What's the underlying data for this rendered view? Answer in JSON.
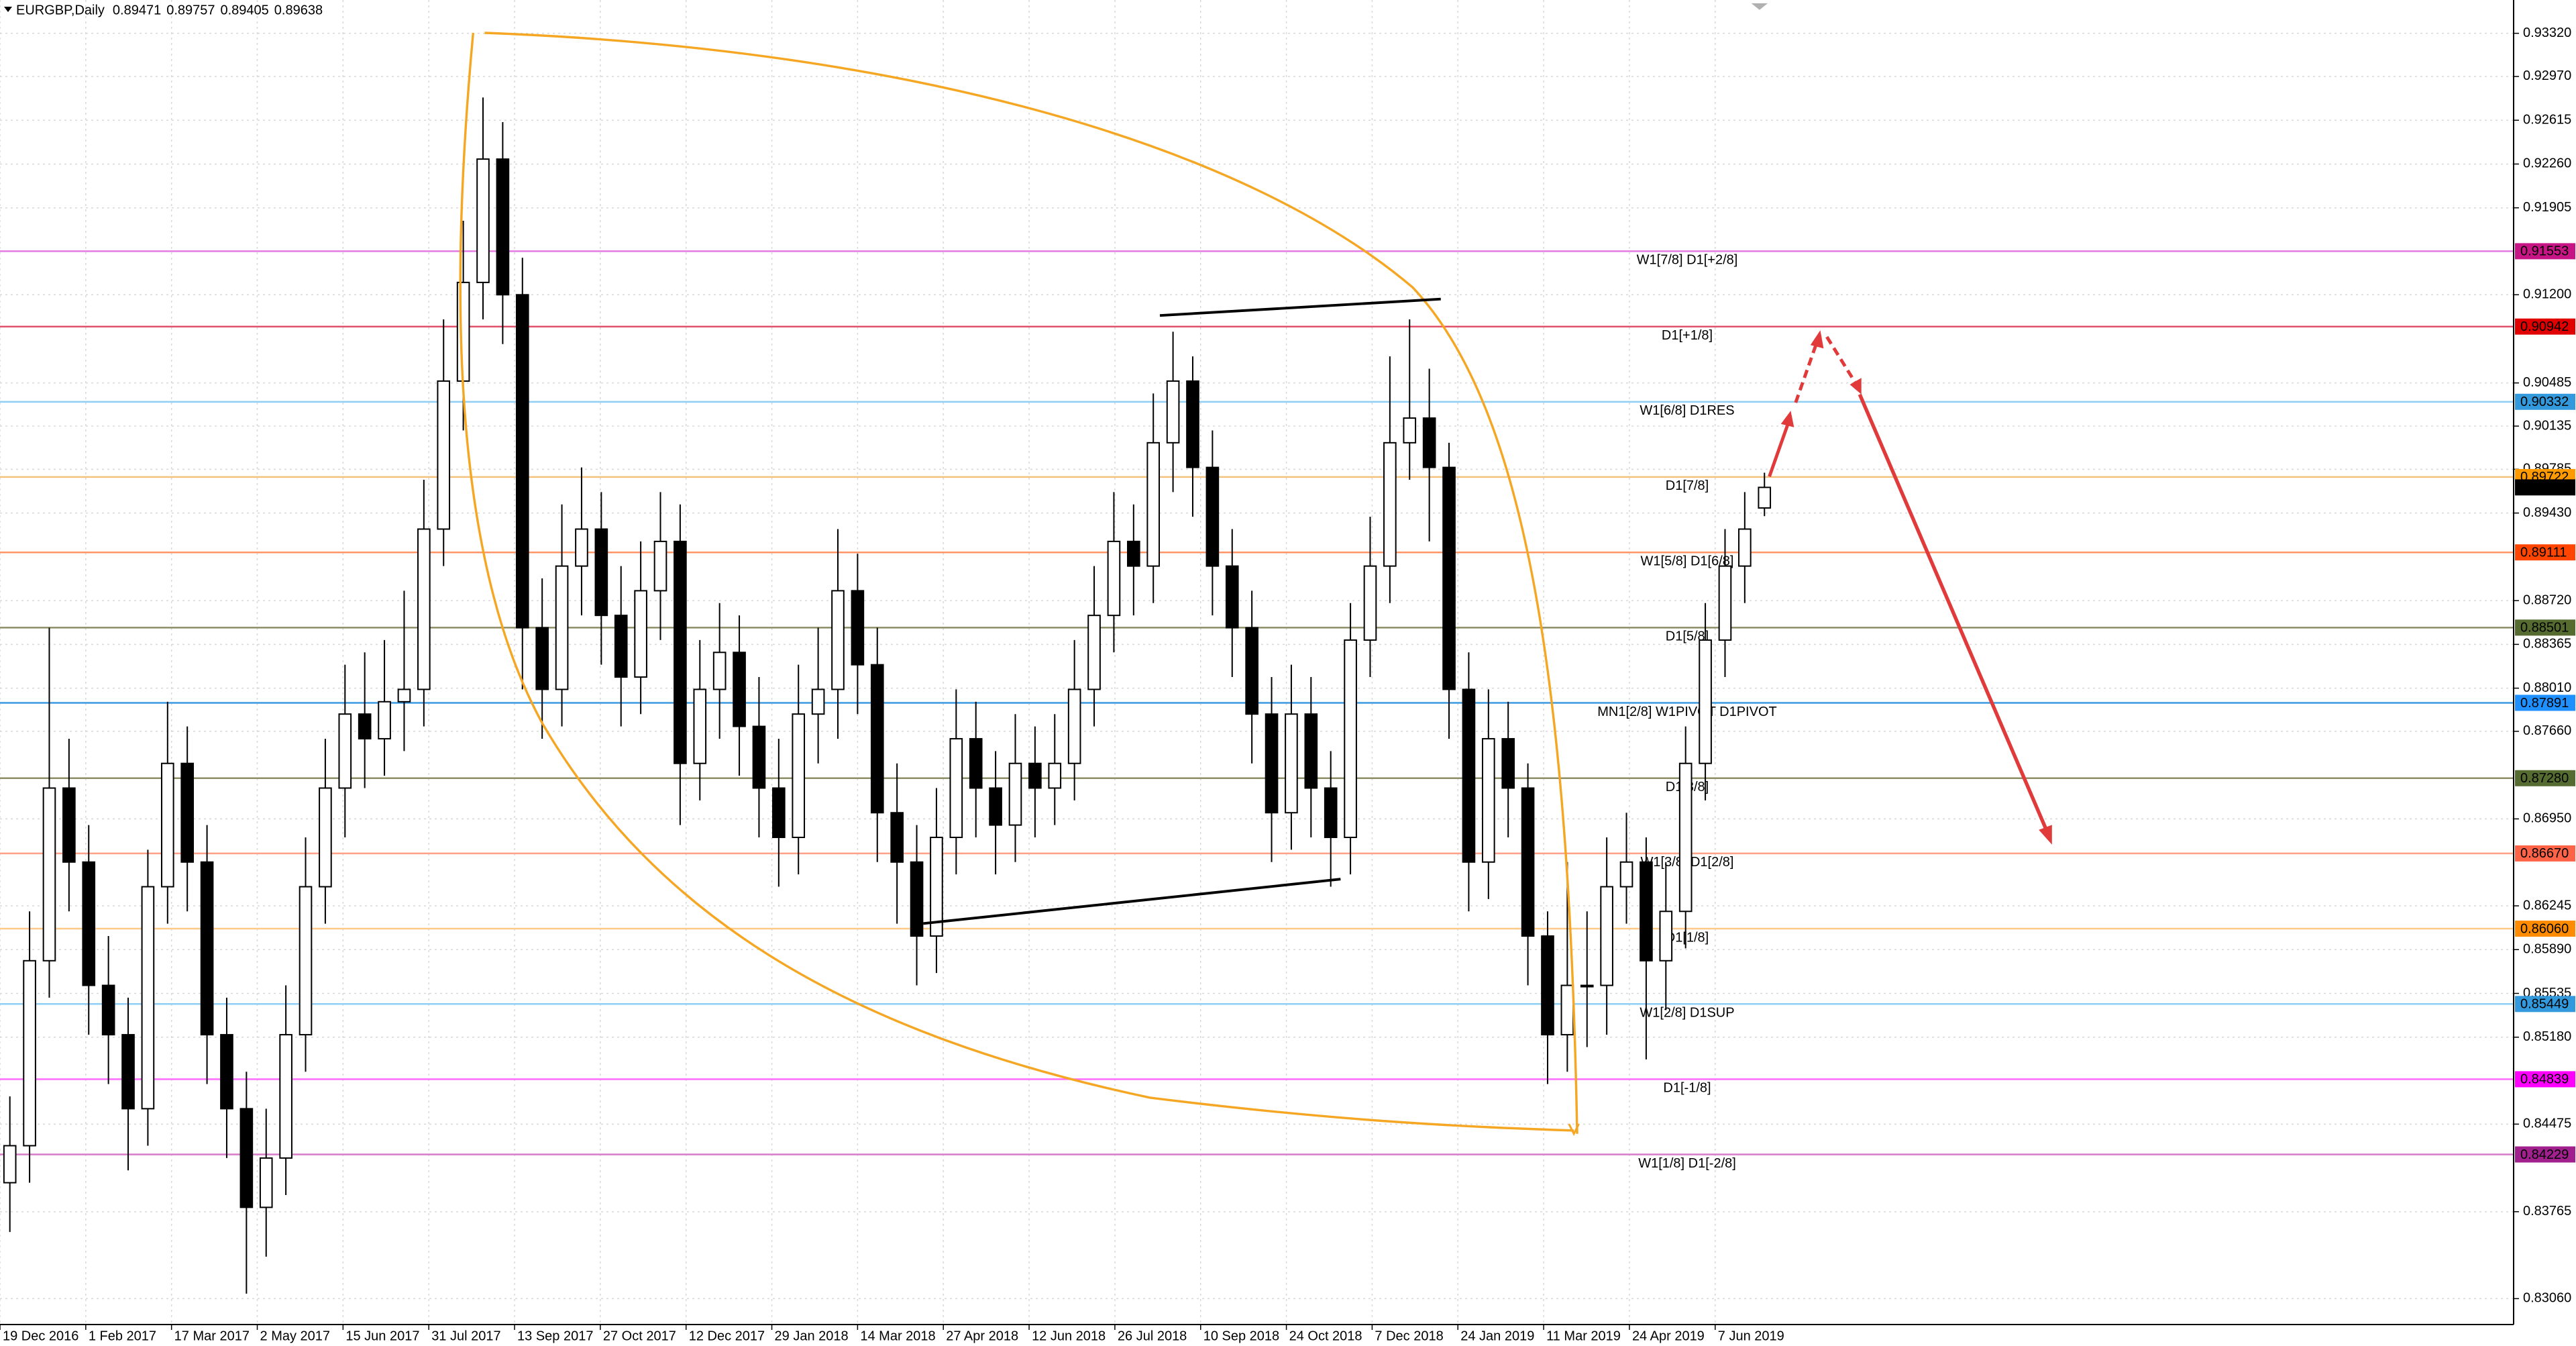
{
  "chart_data": {
    "type": "candlestick",
    "title": "EURGBP,Daily",
    "ohlc": [
      0.89471,
      0.89757,
      0.89405,
      0.89638
    ],
    "open": [
      0.84,
      0.843,
      0.858,
      0.872,
      0.866,
      0.856,
      0.852,
      0.846,
      0.864,
      0.874,
      0.866,
      0.852,
      0.846,
      0.838,
      0.842,
      0.852,
      0.864,
      0.872,
      0.878,
      0.876,
      0.879,
      0.88,
      0.893,
      0.905,
      0.913,
      0.923,
      0.912,
      0.885,
      0.88,
      0.89,
      0.893,
      0.886,
      0.881,
      0.888,
      0.892,
      0.874,
      0.88,
      0.883,
      0.877,
      0.872,
      0.868,
      0.878,
      0.88,
      0.888,
      0.882,
      0.87,
      0.866,
      0.86,
      0.868,
      0.876,
      0.872,
      0.869,
      0.874,
      0.872,
      0.874,
      0.88,
      0.886,
      0.892,
      0.89,
      0.9,
      0.905,
      0.898,
      0.89,
      0.885,
      0.878,
      0.87,
      0.878,
      0.872,
      0.868,
      0.884,
      0.89,
      0.9,
      0.902,
      0.898,
      0.88,
      0.866,
      0.876,
      0.872,
      0.86,
      0.852,
      0.856,
      0.856,
      0.864,
      0.866,
      0.858,
      0.862,
      0.874,
      0.884,
      0.89,
      0.89471
    ],
    "high": [
      0.847,
      0.862,
      0.885,
      0.876,
      0.869,
      0.86,
      0.855,
      0.867,
      0.879,
      0.877,
      0.869,
      0.855,
      0.849,
      0.846,
      0.856,
      0.868,
      0.876,
      0.882,
      0.883,
      0.884,
      0.888,
      0.897,
      0.91,
      0.918,
      0.928,
      0.926,
      0.915,
      0.889,
      0.895,
      0.898,
      0.896,
      0.89,
      0.892,
      0.896,
      0.895,
      0.884,
      0.887,
      0.886,
      0.881,
      0.876,
      0.882,
      0.885,
      0.893,
      0.891,
      0.885,
      0.874,
      0.869,
      0.872,
      0.88,
      0.879,
      0.875,
      0.878,
      0.877,
      0.878,
      0.884,
      0.89,
      0.896,
      0.895,
      0.904,
      0.909,
      0.907,
      0.901,
      0.893,
      0.888,
      0.881,
      0.882,
      0.881,
      0.875,
      0.887,
      0.894,
      0.907,
      0.91,
      0.906,
      0.9,
      0.883,
      0.88,
      0.879,
      0.874,
      0.862,
      0.866,
      0.862,
      0.868,
      0.87,
      0.868,
      0.866,
      0.877,
      0.887,
      0.893,
      0.896,
      0.89757
    ],
    "low": [
      0.836,
      0.84,
      0.855,
      0.862,
      0.852,
      0.848,
      0.841,
      0.843,
      0.861,
      0.862,
      0.848,
      0.842,
      0.831,
      0.834,
      0.839,
      0.849,
      0.861,
      0.868,
      0.872,
      0.873,
      0.875,
      0.877,
      0.89,
      0.901,
      0.91,
      0.908,
      0.88,
      0.876,
      0.877,
      0.886,
      0.882,
      0.877,
      0.878,
      0.884,
      0.869,
      0.871,
      0.876,
      0.873,
      0.868,
      0.864,
      0.865,
      0.874,
      0.876,
      0.878,
      0.866,
      0.861,
      0.856,
      0.857,
      0.865,
      0.868,
      0.865,
      0.866,
      0.868,
      0.869,
      0.871,
      0.877,
      0.883,
      0.886,
      0.887,
      0.896,
      0.894,
      0.886,
      0.881,
      0.874,
      0.866,
      0.867,
      0.868,
      0.864,
      0.865,
      0.881,
      0.887,
      0.897,
      0.892,
      0.876,
      0.862,
      0.863,
      0.868,
      0.856,
      0.848,
      0.849,
      0.851,
      0.852,
      0.861,
      0.85,
      0.854,
      0.859,
      0.871,
      0.881,
      0.887,
      0.89405
    ],
    "close": [
      0.843,
      0.858,
      0.872,
      0.866,
      0.856,
      0.852,
      0.846,
      0.864,
      0.874,
      0.866,
      0.852,
      0.846,
      0.838,
      0.842,
      0.852,
      0.864,
      0.872,
      0.878,
      0.876,
      0.879,
      0.88,
      0.893,
      0.905,
      0.913,
      0.923,
      0.912,
      0.885,
      0.88,
      0.89,
      0.893,
      0.886,
      0.881,
      0.888,
      0.892,
      0.874,
      0.88,
      0.883,
      0.877,
      0.872,
      0.868,
      0.878,
      0.88,
      0.888,
      0.882,
      0.87,
      0.866,
      0.86,
      0.868,
      0.876,
      0.872,
      0.869,
      0.874,
      0.872,
      0.874,
      0.88,
      0.886,
      0.892,
      0.89,
      0.9,
      0.905,
      0.898,
      0.89,
      0.885,
      0.878,
      0.87,
      0.878,
      0.872,
      0.868,
      0.884,
      0.89,
      0.9,
      0.902,
      0.898,
      0.88,
      0.866,
      0.876,
      0.872,
      0.86,
      0.852,
      0.856,
      0.856,
      0.864,
      0.866,
      0.858,
      0.862,
      0.874,
      0.884,
      0.89,
      0.893,
      0.89638
    ],
    "xlim": [
      0,
      127.5
    ],
    "ylim": [
      0.8285,
      0.9359
    ],
    "xticks": [
      {
        "value": 0,
        "label": "19 Dec 2016"
      },
      {
        "value": 4.35,
        "label": "1 Feb 2017"
      },
      {
        "value": 8.7,
        "label": "17 Mar 2017"
      },
      {
        "value": 13.05,
        "label": "2 May 2017"
      },
      {
        "value": 17.4,
        "label": "15 Jun 2017"
      },
      {
        "value": 21.75,
        "label": "31 Jul 2017"
      },
      {
        "value": 26.1,
        "label": "13 Sep 2017"
      },
      {
        "value": 30.45,
        "label": "27 Oct 2017"
      },
      {
        "value": 34.8,
        "label": "12 Dec 2017"
      },
      {
        "value": 39.15,
        "label": "29 Jan 2018"
      },
      {
        "value": 43.5,
        "label": "14 Mar 2018"
      },
      {
        "value": 47.85,
        "label": "27 Apr 2018"
      },
      {
        "value": 52.2,
        "label": "12 Jun 2018"
      },
      {
        "value": 56.55,
        "label": "26 Jul 2018"
      },
      {
        "value": 60.9,
        "label": "10 Sep 2018"
      },
      {
        "value": 65.25,
        "label": "24 Oct 2018"
      },
      {
        "value": 69.6,
        "label": "7 Dec 2018"
      },
      {
        "value": 73.95,
        "label": "24 Jan 2019"
      },
      {
        "value": 78.3,
        "label": "11 Mar 2019"
      },
      {
        "value": 82.65,
        "label": "24 Apr 2019"
      },
      {
        "value": 87,
        "label": "7 Jun 2019"
      }
    ],
    "yticks": [
      {
        "value": 0.9332,
        "label": "0.93320"
      },
      {
        "value": 0.9297,
        "label": "0.92970"
      },
      0.92615,
      {
        "value": 0.9226,
        "label": "0.92260"
      },
      0.91905,
      {
        "value": 0.912,
        "label": "0.91200"
      },
      0.90485,
      0.90135,
      0.89785,
      {
        "value": 0.8943,
        "label": "0.89430"
      },
      {
        "value": 0.8872,
        "label": "0.88720"
      },
      0.88365,
      {
        "value": 0.8801,
        "label": "0.88010"
      },
      {
        "value": 0.8766,
        "label": "0.87660"
      },
      {
        "value": 0.8695,
        "label": "0.86950"
      },
      0.86245,
      {
        "value": 0.8589,
        "label": "0.85890"
      },
      0.85535,
      {
        "value": 0.8518,
        "label": "0.85180"
      },
      0.84475,
      0.83765,
      {
        "value": 0.8306,
        "label": "0.83060"
      }
    ],
    "grid": true,
    "bull_color": "#ffffff",
    "bear_color": "#000000",
    "levels": [
      {
        "price": 0.91553,
        "price_label": "0.91553",
        "text": "W1[7/8] D1[+2/8]",
        "line_color": "#e27be2",
        "color": "#c71585"
      },
      {
        "price": 0.90942,
        "price_label": "0.90942",
        "text": "D1[+1/8]",
        "line_color": "#e0506a",
        "color": "#e00000"
      },
      {
        "price": 0.90332,
        "price_label": "0.90332",
        "text": "W1[6/8] D1RES",
        "line_color": "#8fcff5",
        "color": "#3399dd"
      },
      {
        "price": 0.89722,
        "price_label": "0.89722",
        "text": "D1[7/8]",
        "line_color": "#f4c27a",
        "color": "#ff9a00"
      },
      {
        "price": 0.89111,
        "price_label": "0.89111",
        "text": "W1[5/8] D1[6/8]",
        "line_color": "#ff9466",
        "color": "#ff4500"
      },
      {
        "price": 0.88501,
        "price_label": "0.88501",
        "text": "D1[5/8]",
        "line_color": "#8d8d66",
        "color": "#556b2f"
      },
      {
        "price": 0.87891,
        "price_label": "0.87891",
        "text": "MN1[2/8] W1PIVOT D1PIVOT",
        "line_color": "#3a9ae0",
        "color": "#1e90ff"
      },
      {
        "price": 0.8728,
        "price_label": "0.87280",
        "text": "D1[3/8]",
        "line_color": "#8d8d66",
        "color": "#556b2f"
      },
      {
        "price": 0.8667,
        "price_label": "0.86670",
        "text": "W1[3/8] D1[2/8]",
        "line_color": "#ffa088",
        "color": "#ff6347"
      },
      {
        "price": 0.8606,
        "price_label": "0.86060",
        "text": "D1[1/8]",
        "line_color": "#ffc98a",
        "color": "#ff8c00"
      },
      {
        "price": 0.85449,
        "price_label": "0.85449",
        "text": "W1[2/8] D1SUP",
        "line_color": "#8fcff5",
        "color": "#3399dd"
      },
      {
        "price": 0.84839,
        "price_label": "0.84839",
        "text": "D1[-1/8]",
        "line_color": "#ff6bff",
        "color": "#ff00ff"
      },
      {
        "price": 0.84229,
        "price_label": "0.84229",
        "text": "W1[1/8] D1[-2/8]",
        "line_color": "#d77ac9",
        "color": "#a0208e"
      }
    ]
  }
}
